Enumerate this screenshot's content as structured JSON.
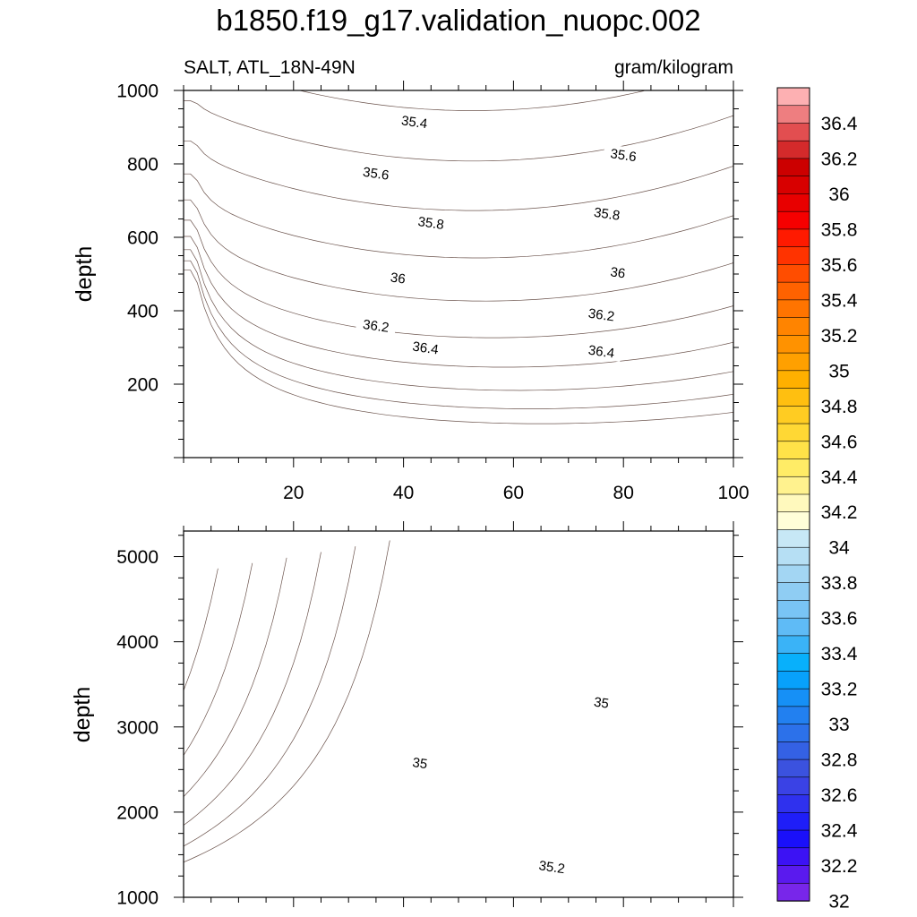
{
  "chart_data": {
    "type": "contour",
    "title": "b1850.f19_g17.validation_nuopc.002",
    "variable_label": "SALT, ATL_18N-49N",
    "units_label": "gram/kilogram",
    "upper_panel": {
      "xlabel": "",
      "ylabel": "depth",
      "xlim": [
        0,
        100
      ],
      "ylim": [
        1000,
        0
      ],
      "xticks": [
        20,
        40,
        60,
        80,
        100
      ],
      "yticks": [
        200,
        400,
        600,
        800,
        1000
      ],
      "contour_labels": [
        {
          "text": "36.4",
          "x": 44,
          "depth": 300
        },
        {
          "text": "36.4",
          "x": 76,
          "depth": 290
        },
        {
          "text": "36.2",
          "x": 35,
          "depth": 360
        },
        {
          "text": "36.2",
          "x": 76,
          "depth": 390
        },
        {
          "text": "36",
          "x": 39,
          "depth": 490
        },
        {
          "text": "36",
          "x": 79,
          "depth": 505
        },
        {
          "text": "35.8",
          "x": 45,
          "depth": 640
        },
        {
          "text": "35.8",
          "x": 77,
          "depth": 665
        },
        {
          "text": "35.6",
          "x": 35,
          "depth": 775
        },
        {
          "text": "35.6",
          "x": 80,
          "depth": 825
        },
        {
          "text": "35.4",
          "x": 42,
          "depth": 915
        }
      ]
    },
    "lower_panel": {
      "xlabel": "",
      "ylabel": "depth",
      "xlim": [
        0,
        100
      ],
      "ylim": [
        5300,
        1000
      ],
      "yticks": [
        1000,
        2000,
        3000,
        4000,
        5000
      ],
      "contour_labels": [
        {
          "text": "35.2",
          "x": 67,
          "depth": 1360
        },
        {
          "text": "35",
          "x": 43,
          "depth": 2580
        },
        {
          "text": "35",
          "x": 76,
          "depth": 3290
        }
      ]
    },
    "colorbar": {
      "labels": [
        "36.4",
        "36.2",
        "36",
        "35.8",
        "35.6",
        "35.4",
        "35.2",
        "35",
        "34.8",
        "34.6",
        "34.4",
        "34.2",
        "34",
        "33.8",
        "33.6",
        "33.4",
        "33.2",
        "33",
        "32.8",
        "32.6",
        "32.4",
        "32.2",
        "32"
      ],
      "levels_top_to_bottom": [
        36.5,
        36.4,
        36.3,
        36.2,
        36.1,
        36.0,
        35.9,
        35.8,
        35.7,
        35.6,
        35.5,
        35.4,
        35.3,
        35.2,
        35.1,
        35.0,
        34.9,
        34.8,
        34.7,
        34.6,
        34.5,
        34.4,
        34.3,
        34.2,
        34.1,
        34.0,
        33.9,
        33.8,
        33.7,
        33.6,
        33.5,
        33.4,
        33.3,
        33.2,
        33.1,
        33.0,
        32.9,
        32.8,
        32.7,
        32.6,
        32.5,
        32.4,
        32.3,
        32.2,
        32.1,
        32.0
      ],
      "colors_top_to_bottom": [
        "#fdb0b2",
        "#ee7e80",
        "#e24e50",
        "#d42a2b",
        "#cc0000",
        "#d80000",
        "#e80000",
        "#f60000",
        "#ff1a00",
        "#ff3300",
        "#ff4d00",
        "#ff6200",
        "#ff7400",
        "#ff8400",
        "#ff9200",
        "#ffa000",
        "#ffb000",
        "#ffbf10",
        "#ffcc22",
        "#ffd834",
        "#ffe248",
        "#ffec66",
        "#fff28e",
        "#fff9bd",
        "#fffed8",
        "#c7e8f6",
        "#b6dff4",
        "#a3d6f3",
        "#8fcdf3",
        "#79c4f5",
        "#5fbbf6",
        "#3ab3f7",
        "#08b0fb",
        "#08a1fb",
        "#1690f6",
        "#2280f0",
        "#2c71ea",
        "#3461e4",
        "#3b52df",
        "#3a42e5",
        "#2f31ee",
        "#1f1ef8",
        "#1a10fa",
        "#3c12f4",
        "#5a1aee",
        "#7826ea"
      ]
    }
  }
}
